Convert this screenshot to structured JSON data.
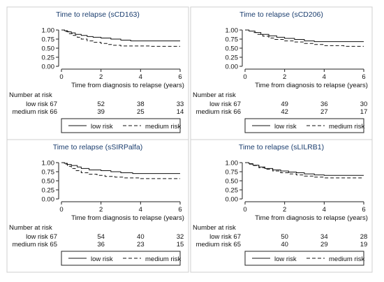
{
  "chart_data": [
    {
      "type": "line",
      "title": "Time to relapse (sCD163)",
      "xlabel": "Time from diagnosis to relapse (years)",
      "ylabel": "",
      "xlim": [
        0,
        6
      ],
      "ylim": [
        0,
        1
      ],
      "x_ticks": [
        "0",
        "2",
        "4",
        "6"
      ],
      "y_ticks": [
        "0.00",
        "0.25",
        "0.50",
        "0.75",
        "1.00"
      ],
      "legend_position": "bottom",
      "series": [
        {
          "name": "low risk",
          "line_style": "solid",
          "points": [
            [
              0,
              1.0
            ],
            [
              0.15,
              0.98
            ],
            [
              0.3,
              0.95
            ],
            [
              0.5,
              0.92
            ],
            [
              0.7,
              0.88
            ],
            [
              1.0,
              0.85
            ],
            [
              1.3,
              0.82
            ],
            [
              1.6,
              0.8
            ],
            [
              2.0,
              0.78
            ],
            [
              2.5,
              0.75
            ],
            [
              3.0,
              0.72
            ],
            [
              3.5,
              0.7
            ],
            [
              6.0,
              0.7
            ]
          ]
        },
        {
          "name": "medium risk",
          "line_style": "dashed",
          "points": [
            [
              0,
              1.0
            ],
            [
              0.2,
              0.96
            ],
            [
              0.4,
              0.9
            ],
            [
              0.6,
              0.85
            ],
            [
              0.8,
              0.8
            ],
            [
              1.0,
              0.75
            ],
            [
              1.3,
              0.7
            ],
            [
              1.6,
              0.66
            ],
            [
              2.0,
              0.63
            ],
            [
              2.3,
              0.6
            ],
            [
              2.6,
              0.58
            ],
            [
              3.0,
              0.56
            ],
            [
              4.5,
              0.55
            ],
            [
              6.0,
              0.55
            ]
          ]
        }
      ],
      "risk_table": {
        "header": "Number at risk",
        "rows": [
          {
            "label": "low risk 67",
            "values": [
              "52",
              "38",
              "33"
            ]
          },
          {
            "label": "medium risk 66",
            "values": [
              "39",
              "25",
              "14"
            ]
          }
        ]
      }
    },
    {
      "type": "line",
      "title": "Time to relapse (sCD206)",
      "xlabel": "Time from diagnosis to relapse (years)",
      "ylabel": "",
      "xlim": [
        0,
        6
      ],
      "ylim": [
        0,
        1
      ],
      "x_ticks": [
        "0",
        "2",
        "4",
        "6"
      ],
      "y_ticks": [
        "0.00",
        "0.25",
        "0.50",
        "0.75",
        "1.00"
      ],
      "legend_position": "bottom",
      "series": [
        {
          "name": "low risk",
          "line_style": "solid",
          "points": [
            [
              0,
              1.0
            ],
            [
              0.2,
              0.97
            ],
            [
              0.5,
              0.93
            ],
            [
              0.8,
              0.88
            ],
            [
              1.2,
              0.84
            ],
            [
              1.6,
              0.8
            ],
            [
              2.0,
              0.77
            ],
            [
              2.5,
              0.74
            ],
            [
              3.0,
              0.7
            ],
            [
              3.5,
              0.68
            ],
            [
              6.0,
              0.68
            ]
          ]
        },
        {
          "name": "medium risk",
          "line_style": "dashed",
          "points": [
            [
              0,
              1.0
            ],
            [
              0.2,
              0.97
            ],
            [
              0.4,
              0.93
            ],
            [
              0.6,
              0.88
            ],
            [
              0.9,
              0.83
            ],
            [
              1.2,
              0.78
            ],
            [
              1.5,
              0.74
            ],
            [
              2.0,
              0.7
            ],
            [
              2.5,
              0.67
            ],
            [
              3.0,
              0.63
            ],
            [
              3.5,
              0.6
            ],
            [
              4.0,
              0.57
            ],
            [
              5.0,
              0.55
            ],
            [
              6.0,
              0.55
            ]
          ]
        }
      ],
      "risk_table": {
        "header": "Number at risk",
        "rows": [
          {
            "label": "low risk 67",
            "values": [
              "49",
              "36",
              "30"
            ]
          },
          {
            "label": "medium risk 66",
            "values": [
              "42",
              "27",
              "17"
            ]
          }
        ]
      }
    },
    {
      "type": "line",
      "title": "Time to relapse (sSIRPalfa)",
      "xlabel": "Time from diagnosis to relapse (years)",
      "ylabel": "",
      "xlim": [
        0,
        6
      ],
      "ylim": [
        0,
        1
      ],
      "x_ticks": [
        "0",
        "2",
        "4",
        "6"
      ],
      "y_ticks": [
        "0.00",
        "0.25",
        "0.50",
        "0.75",
        "1.00"
      ],
      "legend_position": "bottom",
      "series": [
        {
          "name": "low risk",
          "line_style": "solid",
          "points": [
            [
              0,
              1.0
            ],
            [
              0.15,
              0.98
            ],
            [
              0.3,
              0.95
            ],
            [
              0.5,
              0.92
            ],
            [
              0.8,
              0.88
            ],
            [
              1.0,
              0.84
            ],
            [
              1.4,
              0.8
            ],
            [
              2.0,
              0.78
            ],
            [
              2.5,
              0.75
            ],
            [
              3.0,
              0.72
            ],
            [
              3.6,
              0.7
            ],
            [
              6.0,
              0.7
            ]
          ]
        },
        {
          "name": "medium risk",
          "line_style": "dashed",
          "points": [
            [
              0,
              1.0
            ],
            [
              0.15,
              0.96
            ],
            [
              0.3,
              0.9
            ],
            [
              0.5,
              0.84
            ],
            [
              0.7,
              0.78
            ],
            [
              1.0,
              0.72
            ],
            [
              1.4,
              0.68
            ],
            [
              1.8,
              0.65
            ],
            [
              2.2,
              0.62
            ],
            [
              2.7,
              0.6
            ],
            [
              3.2,
              0.58
            ],
            [
              4.0,
              0.56
            ],
            [
              6.0,
              0.56
            ]
          ]
        }
      ],
      "risk_table": {
        "header": "Number at risk",
        "rows": [
          {
            "label": "low risk 67",
            "values": [
              "54",
              "40",
              "32"
            ]
          },
          {
            "label": "medium risk 65",
            "values": [
              "36",
              "23",
              "15"
            ]
          }
        ]
      }
    },
    {
      "type": "line",
      "title": "Time to relapse (sLILRB1)",
      "xlabel": "Time from diagnosis to relapse (years)",
      "ylabel": "",
      "xlim": [
        0,
        6
      ],
      "ylim": [
        0,
        1
      ],
      "x_ticks": [
        "0",
        "2",
        "4",
        "6"
      ],
      "y_ticks": [
        "0.00",
        "0.25",
        "0.50",
        "0.75",
        "1.00"
      ],
      "legend_position": "bottom",
      "series": [
        {
          "name": "low risk",
          "line_style": "solid",
          "points": [
            [
              0,
              1.0
            ],
            [
              0.2,
              0.97
            ],
            [
              0.4,
              0.93
            ],
            [
              0.7,
              0.88
            ],
            [
              1.0,
              0.84
            ],
            [
              1.4,
              0.8
            ],
            [
              1.8,
              0.77
            ],
            [
              2.2,
              0.74
            ],
            [
              2.6,
              0.72
            ],
            [
              3.0,
              0.69
            ],
            [
              3.5,
              0.66
            ],
            [
              4.0,
              0.65
            ],
            [
              6.0,
              0.65
            ]
          ]
        },
        {
          "name": "medium risk",
          "line_style": "dashed",
          "points": [
            [
              0,
              1.0
            ],
            [
              0.2,
              0.96
            ],
            [
              0.4,
              0.92
            ],
            [
              0.7,
              0.86
            ],
            [
              1.0,
              0.82
            ],
            [
              1.4,
              0.77
            ],
            [
              1.8,
              0.72
            ],
            [
              2.2,
              0.69
            ],
            [
              2.6,
              0.66
            ],
            [
              3.0,
              0.63
            ],
            [
              3.5,
              0.6
            ],
            [
              4.0,
              0.58
            ],
            [
              6.0,
              0.58
            ]
          ]
        }
      ],
      "risk_table": {
        "header": "Number at risk",
        "rows": [
          {
            "label": "low risk 67",
            "values": [
              "50",
              "34",
              "28"
            ]
          },
          {
            "label": "medium risk 65",
            "values": [
              "40",
              "29",
              "19"
            ]
          }
        ]
      }
    }
  ]
}
